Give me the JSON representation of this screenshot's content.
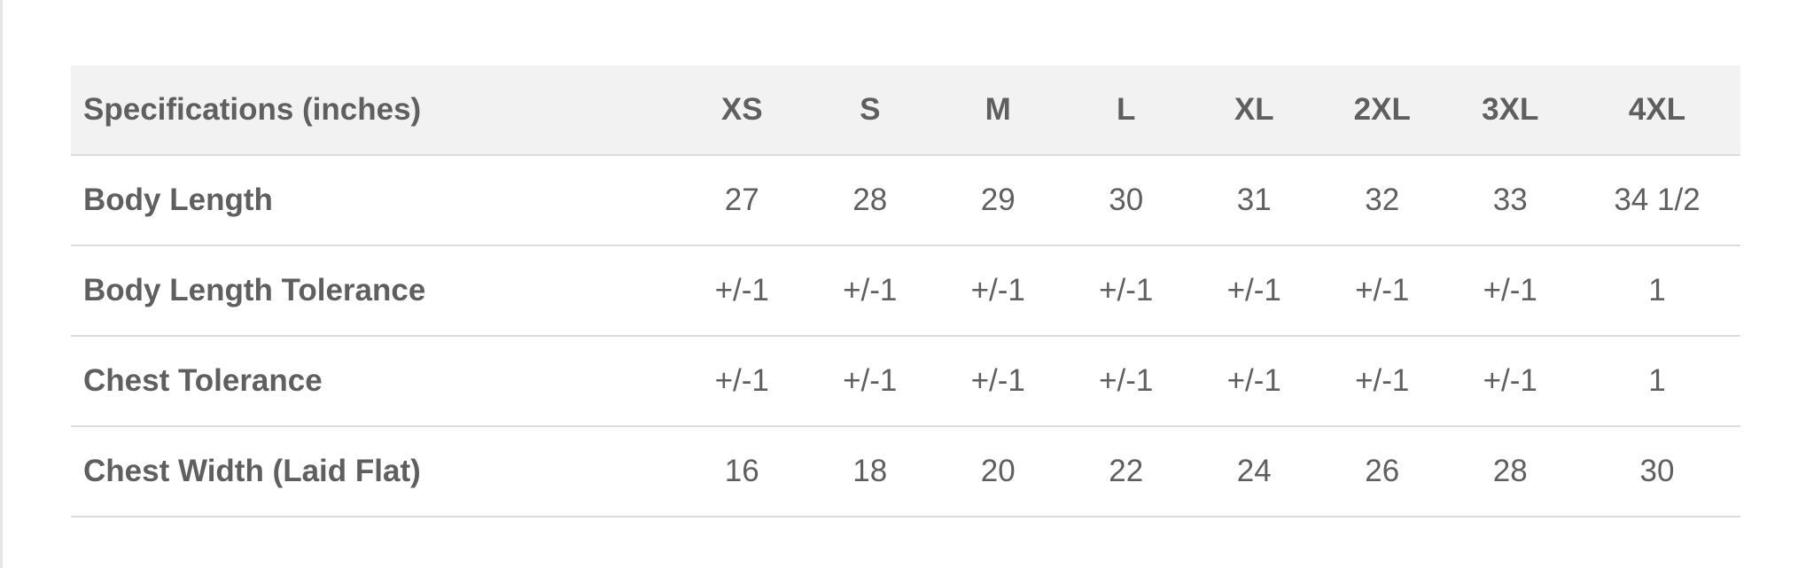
{
  "table": {
    "header": [
      "Specifications (inches)",
      "XS",
      "S",
      "M",
      "L",
      "XL",
      "2XL",
      "3XL",
      "4XL"
    ],
    "rows": [
      [
        "Body Length",
        "27",
        "28",
        "29",
        "30",
        "31",
        "32",
        "33",
        "34 1/2"
      ],
      [
        "Body Length Tolerance",
        "+/-1",
        "+/-1",
        "+/-1",
        "+/-1",
        "+/-1",
        "+/-1",
        "+/-1",
        "1"
      ],
      [
        "Chest Tolerance",
        "+/-1",
        "+/-1",
        "+/-1",
        "+/-1",
        "+/-1",
        "+/-1",
        "+/-1",
        "1"
      ],
      [
        "Chest Width (Laid Flat)",
        "16",
        "18",
        "20",
        "22",
        "24",
        "26",
        "28",
        "30"
      ]
    ]
  },
  "colors": {
    "text": "#5f5f5f",
    "header_bg": "#f2f2f2",
    "border": "#dcdcdc"
  }
}
